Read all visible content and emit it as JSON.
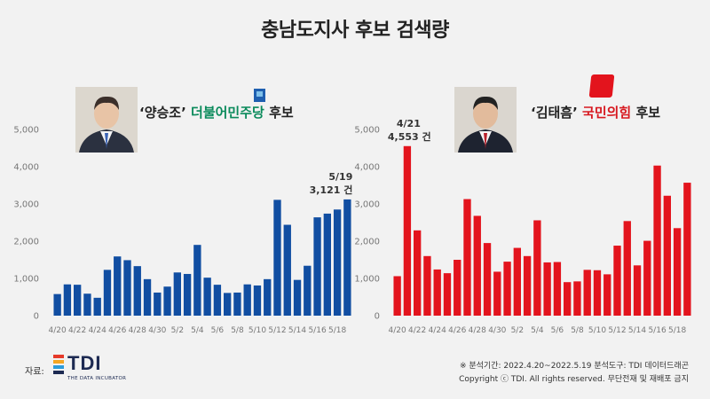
{
  "title": "충남도지사 후보 검색량",
  "left_candidate": {
    "name": "‘양승조’",
    "party": "더불어민주당",
    "suffix": "후보"
  },
  "right_candidate": {
    "name": "‘김태흠’",
    "party": "국민의힘",
    "suffix": "후보"
  },
  "source_label": "자료:",
  "logo": {
    "word": "TDI",
    "tagline": "THE DATA INCUBATOR"
  },
  "notes": {
    "period": "※ 분석기간: 2022.4.20~2022.5.19 분석도구: TDI 데이터드래곤",
    "copyright": "Copyright ⓒ TDI. All rights reserved. 무단전재 및 재배포 금지"
  },
  "chart_data": [
    {
      "type": "bar",
      "x": [
        "4/20",
        "4/21",
        "4/22",
        "4/23",
        "4/24",
        "4/25",
        "4/26",
        "4/27",
        "4/28",
        "4/29",
        "4/30",
        "5/1",
        "5/2",
        "5/3",
        "5/4",
        "5/5",
        "5/6",
        "5/7",
        "5/8",
        "5/9",
        "5/10",
        "5/11",
        "5/12",
        "5/13",
        "5/14",
        "5/15",
        "5/16",
        "5/17",
        "5/18",
        "5/19"
      ],
      "tick_labels": [
        "4/20",
        "4/22",
        "4/24",
        "4/26",
        "4/28",
        "4/30",
        "5/2",
        "5/4",
        "5/6",
        "5/8",
        "5/10",
        "5/12",
        "5/14",
        "5/16",
        "5/18"
      ],
      "values": [
        580,
        840,
        830,
        590,
        480,
        1230,
        1590,
        1490,
        1330,
        980,
        620,
        780,
        1160,
        1120,
        1900,
        1020,
        830,
        610,
        620,
        840,
        810,
        980,
        3110,
        2440,
        960,
        1340,
        2640,
        2740,
        2850,
        3121
      ],
      "ylim": [
        0,
        5000
      ],
      "yticks": [
        "0",
        "1,000",
        "2,000",
        "3,000",
        "4,000",
        "5,000"
      ],
      "color": "#114ea2",
      "annotation": {
        "line1": "5/19",
        "line2": "3,121 건"
      }
    },
    {
      "type": "bar",
      "x": [
        "4/20",
        "4/21",
        "4/22",
        "4/23",
        "4/24",
        "4/25",
        "4/26",
        "4/27",
        "4/28",
        "4/29",
        "4/30",
        "5/1",
        "5/2",
        "5/3",
        "5/4",
        "5/5",
        "5/6",
        "5/7",
        "5/8",
        "5/9",
        "5/10",
        "5/11",
        "5/12",
        "5/13",
        "5/14",
        "5/15",
        "5/16",
        "5/17",
        "5/18",
        "5/19"
      ],
      "tick_labels": [
        "4/20",
        "4/22",
        "4/24",
        "4/26",
        "4/28",
        "4/30",
        "5/2",
        "5/4",
        "5/6",
        "5/8",
        "5/10",
        "5/12",
        "5/14",
        "5/16",
        "5/18"
      ],
      "values": [
        1060,
        4553,
        2290,
        1600,
        1240,
        1140,
        1500,
        3130,
        2680,
        1950,
        1180,
        1450,
        1820,
        1600,
        2560,
        1430,
        1440,
        900,
        920,
        1230,
        1220,
        1110,
        1880,
        2540,
        1350,
        2010,
        4030,
        3220,
        2350,
        3570
      ],
      "ylim": [
        0,
        5000
      ],
      "yticks": [
        "0",
        "1,000",
        "2,000",
        "3,000",
        "4,000",
        "5,000"
      ],
      "color": "#e3141d",
      "annotation": {
        "line1": "4/21",
        "line2": "4,553 건"
      }
    }
  ]
}
